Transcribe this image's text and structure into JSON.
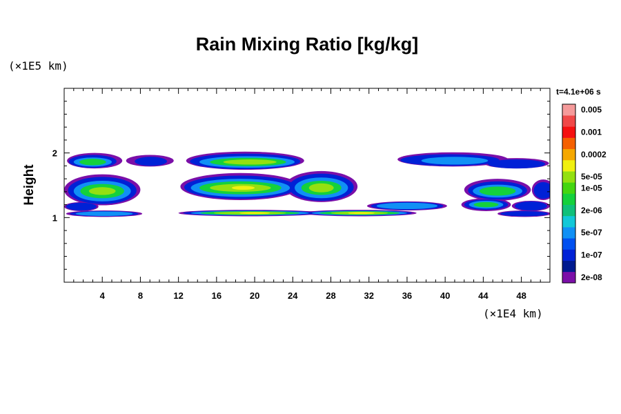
{
  "chart_data": {
    "type": "heatmap",
    "title": "Rain Mixing Ratio [kg/kg]",
    "ylabel": "Height",
    "x_unit": "(×1E4 km)",
    "y_unit": "(×1E5 km)",
    "time_label": "t=4.1e+06 s",
    "xlim": [
      0,
      51
    ],
    "ylim": [
      0,
      3
    ],
    "x_ticks": [
      {
        "value": 4,
        "label": "4"
      },
      {
        "value": 8,
        "label": "8"
      },
      {
        "value": 12,
        "label": "12"
      },
      {
        "value": 16,
        "label": "16"
      },
      {
        "value": 20,
        "label": "20"
      },
      {
        "value": 24,
        "label": "24"
      },
      {
        "value": 28,
        "label": "28"
      },
      {
        "value": 32,
        "label": "32"
      },
      {
        "value": 36,
        "label": "36"
      },
      {
        "value": 40,
        "label": "40"
      },
      {
        "value": 44,
        "label": "44"
      },
      {
        "value": 48,
        "label": "48"
      }
    ],
    "y_ticks": [
      {
        "value": 1,
        "label": "1"
      },
      {
        "value": 2,
        "label": "2"
      }
    ],
    "colorbar": {
      "colors": [
        "#7b0fa8",
        "#001a8f",
        "#0021d6",
        "#0050f0",
        "#1090f5",
        "#12c8d8",
        "#10c07a",
        "#14d13c",
        "#44d610",
        "#94e010",
        "#f0f010",
        "#f5a800",
        "#f56000",
        "#f51010",
        "#f04848",
        "#f59a9a"
      ],
      "labels": [
        {
          "index": 0,
          "text": "2e-08"
        },
        {
          "index": 2,
          "text": "1e-07"
        },
        {
          "index": 4,
          "text": "5e-07"
        },
        {
          "index": 6,
          "text": "2e-06"
        },
        {
          "index": 8,
          "text": "1e-05"
        },
        {
          "index": 9,
          "text": "5e-05"
        },
        {
          "index": 11,
          "text": "0.0002"
        },
        {
          "index": 13,
          "text": "0.001"
        },
        {
          "index": 15,
          "text": "0.005"
        }
      ]
    },
    "field_layers": [
      {
        "level": 0,
        "blobs": [
          {
            "cx": 3.2,
            "cy": 1.88,
            "rx": 2.9,
            "ry": 0.12
          },
          {
            "cx": 9.0,
            "cy": 1.88,
            "rx": 2.5,
            "ry": 0.09
          },
          {
            "cx": 19.0,
            "cy": 1.88,
            "rx": 6.2,
            "ry": 0.14
          },
          {
            "cx": 40.8,
            "cy": 1.9,
            "rx": 5.8,
            "ry": 0.11
          },
          {
            "cx": 47.5,
            "cy": 1.84,
            "rx": 3.4,
            "ry": 0.08
          },
          {
            "cx": 4.0,
            "cy": 1.43,
            "rx": 4.0,
            "ry": 0.24
          },
          {
            "cx": 18.5,
            "cy": 1.48,
            "rx": 6.3,
            "ry": 0.21
          },
          {
            "cx": 27.0,
            "cy": 1.48,
            "rx": 3.8,
            "ry": 0.24
          },
          {
            "cx": 45.5,
            "cy": 1.43,
            "rx": 3.5,
            "ry": 0.17
          },
          {
            "cx": 50.3,
            "cy": 1.43,
            "rx": 1.2,
            "ry": 0.16
          },
          {
            "cx": 1.8,
            "cy": 1.17,
            "rx": 1.8,
            "ry": 0.07
          },
          {
            "cx": 36.0,
            "cy": 1.18,
            "rx": 4.2,
            "ry": 0.07
          },
          {
            "cx": 44.3,
            "cy": 1.2,
            "rx": 2.6,
            "ry": 0.1
          },
          {
            "cx": 49.0,
            "cy": 1.18,
            "rx": 2.0,
            "ry": 0.08
          },
          {
            "cx": 4.2,
            "cy": 1.06,
            "rx": 4.0,
            "ry": 0.05
          },
          {
            "cx": 19.5,
            "cy": 1.07,
            "rx": 7.5,
            "ry": 0.05
          },
          {
            "cx": 31.0,
            "cy": 1.07,
            "rx": 6.0,
            "ry": 0.05
          },
          {
            "cx": 48.3,
            "cy": 1.06,
            "rx": 2.8,
            "ry": 0.05
          }
        ]
      },
      {
        "level": 2,
        "blobs": [
          {
            "cx": 3.0,
            "cy": 1.87,
            "rx": 2.5,
            "ry": 0.1
          },
          {
            "cx": 9.1,
            "cy": 1.87,
            "rx": 1.7,
            "ry": 0.07
          },
          {
            "cx": 19.0,
            "cy": 1.87,
            "rx": 5.8,
            "ry": 0.12
          },
          {
            "cx": 40.5,
            "cy": 1.89,
            "rx": 5.2,
            "ry": 0.09
          },
          {
            "cx": 47.5,
            "cy": 1.83,
            "rx": 3.0,
            "ry": 0.07
          },
          {
            "cx": 4.0,
            "cy": 1.42,
            "rx": 3.6,
            "ry": 0.21
          },
          {
            "cx": 18.5,
            "cy": 1.47,
            "rx": 5.9,
            "ry": 0.18
          },
          {
            "cx": 27.0,
            "cy": 1.47,
            "rx": 3.4,
            "ry": 0.21
          },
          {
            "cx": 45.5,
            "cy": 1.42,
            "rx": 3.1,
            "ry": 0.14
          },
          {
            "cx": 50.3,
            "cy": 1.42,
            "rx": 1.0,
            "ry": 0.13
          },
          {
            "cx": 1.8,
            "cy": 1.17,
            "rx": 1.6,
            "ry": 0.06
          },
          {
            "cx": 36.0,
            "cy": 1.18,
            "rx": 3.8,
            "ry": 0.06
          },
          {
            "cx": 44.3,
            "cy": 1.2,
            "rx": 2.3,
            "ry": 0.08
          },
          {
            "cx": 49.0,
            "cy": 1.18,
            "rx": 1.7,
            "ry": 0.07
          },
          {
            "cx": 4.2,
            "cy": 1.06,
            "rx": 3.6,
            "ry": 0.04
          },
          {
            "cx": 19.5,
            "cy": 1.07,
            "rx": 7.0,
            "ry": 0.04
          },
          {
            "cx": 31.0,
            "cy": 1.07,
            "rx": 5.5,
            "ry": 0.04
          },
          {
            "cx": 48.3,
            "cy": 1.06,
            "rx": 2.5,
            "ry": 0.04
          }
        ]
      },
      {
        "level": 4,
        "blobs": [
          {
            "cx": 3.0,
            "cy": 1.86,
            "rx": 2.0,
            "ry": 0.07
          },
          {
            "cx": 19.2,
            "cy": 1.86,
            "rx": 5.0,
            "ry": 0.09
          },
          {
            "cx": 41.0,
            "cy": 1.88,
            "rx": 3.5,
            "ry": 0.06
          },
          {
            "cx": 4.0,
            "cy": 1.41,
            "rx": 3.0,
            "ry": 0.16
          },
          {
            "cx": 18.5,
            "cy": 1.46,
            "rx": 5.2,
            "ry": 0.14
          },
          {
            "cx": 27.0,
            "cy": 1.46,
            "rx": 2.8,
            "ry": 0.16
          },
          {
            "cx": 45.5,
            "cy": 1.41,
            "rx": 2.6,
            "ry": 0.1
          },
          {
            "cx": 36.0,
            "cy": 1.18,
            "rx": 3.2,
            "ry": 0.05
          },
          {
            "cx": 44.3,
            "cy": 1.2,
            "rx": 1.8,
            "ry": 0.06
          },
          {
            "cx": 19.5,
            "cy": 1.07,
            "rx": 6.2,
            "ry": 0.035
          },
          {
            "cx": 31.0,
            "cy": 1.07,
            "rx": 5.0,
            "ry": 0.035
          },
          {
            "cx": 4.2,
            "cy": 1.06,
            "rx": 3.0,
            "ry": 0.035
          }
        ]
      },
      {
        "level": 7,
        "blobs": [
          {
            "cx": 3.0,
            "cy": 1.86,
            "rx": 1.4,
            "ry": 0.05
          },
          {
            "cx": 19.3,
            "cy": 1.86,
            "rx": 4.0,
            "ry": 0.065
          },
          {
            "cx": 4.0,
            "cy": 1.41,
            "rx": 2.3,
            "ry": 0.11
          },
          {
            "cx": 18.5,
            "cy": 1.46,
            "rx": 4.3,
            "ry": 0.1
          },
          {
            "cx": 27.0,
            "cy": 1.46,
            "rx": 2.1,
            "ry": 0.11
          },
          {
            "cx": 45.5,
            "cy": 1.41,
            "rx": 1.9,
            "ry": 0.07
          },
          {
            "cx": 44.3,
            "cy": 1.2,
            "rx": 1.3,
            "ry": 0.04
          },
          {
            "cx": 31.0,
            "cy": 1.07,
            "rx": 4.2,
            "ry": 0.028
          },
          {
            "cx": 19.5,
            "cy": 1.07,
            "rx": 5.2,
            "ry": 0.028
          }
        ]
      },
      {
        "level": 9,
        "blobs": [
          {
            "cx": 19.5,
            "cy": 1.86,
            "rx": 2.8,
            "ry": 0.04
          },
          {
            "cx": 18.5,
            "cy": 1.46,
            "rx": 3.2,
            "ry": 0.06
          },
          {
            "cx": 27.0,
            "cy": 1.46,
            "rx": 1.3,
            "ry": 0.07
          },
          {
            "cx": 4.0,
            "cy": 1.41,
            "rx": 1.4,
            "ry": 0.06
          },
          {
            "cx": 31.0,
            "cy": 1.07,
            "rx": 3.0,
            "ry": 0.02
          },
          {
            "cx": 19.5,
            "cy": 1.07,
            "rx": 3.8,
            "ry": 0.02
          }
        ]
      },
      {
        "level": 10,
        "blobs": [
          {
            "cx": 31.2,
            "cy": 1.07,
            "rx": 1.4,
            "ry": 0.015
          },
          {
            "cx": 20.0,
            "cy": 1.07,
            "rx": 1.6,
            "ry": 0.015
          },
          {
            "cx": 18.8,
            "cy": 1.46,
            "rx": 1.2,
            "ry": 0.03
          }
        ]
      }
    ]
  }
}
